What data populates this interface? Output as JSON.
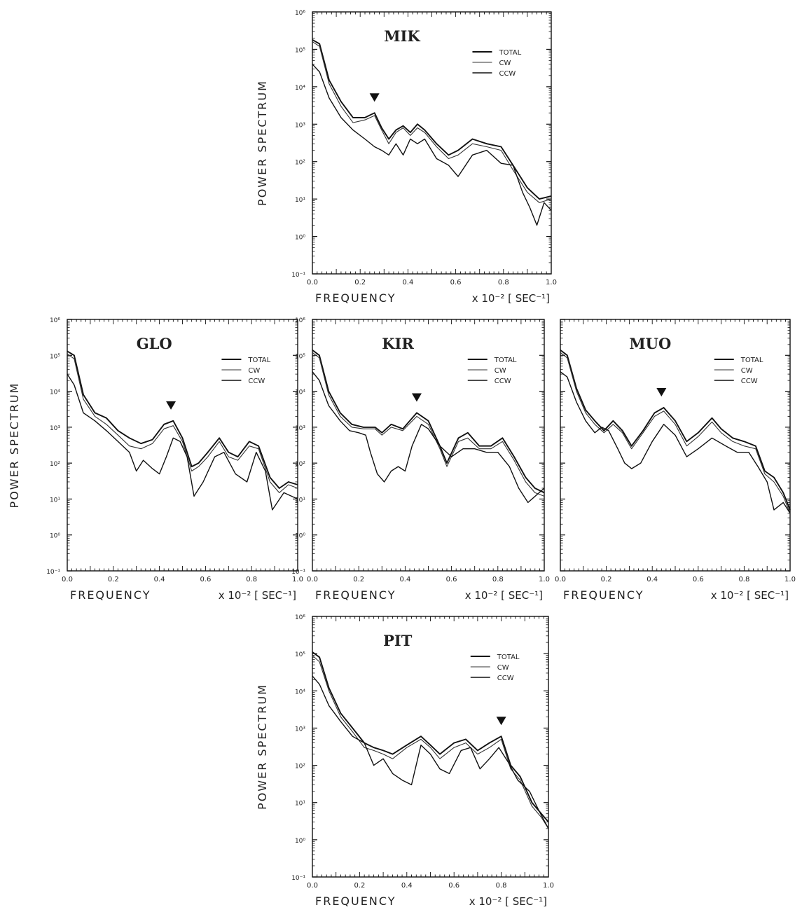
{
  "chart_data": [
    {
      "type": "line",
      "station": "MIK",
      "yscale": "log",
      "xlim": [
        0,
        1.0
      ],
      "ylim": [
        0.1,
        1000000
      ],
      "xlabel": "FREQUENCY",
      "xunit": "x 10⁻² [ SEC⁻¹]",
      "ylabel": "POWER SPECTRUM",
      "x_ticks": [
        "0.0",
        "0.2",
        "0.4",
        "0.6",
        "0.8",
        "1.0"
      ],
      "y_ticks": [
        "10⁻¹",
        "10⁰",
        "10¹",
        "10²",
        "10³",
        "10⁴",
        "10⁵",
        "10⁶"
      ],
      "legend": [
        "TOTAL",
        "CW",
        "CCW"
      ],
      "legend_position": "top-right",
      "peak_marker_x": 0.26,
      "series": [
        {
          "name": "TOTAL",
          "x": [
            0.0,
            0.03,
            0.07,
            0.12,
            0.17,
            0.22,
            0.26,
            0.29,
            0.32,
            0.35,
            0.38,
            0.41,
            0.44,
            0.47,
            0.52,
            0.57,
            0.61,
            0.67,
            0.73,
            0.79,
            0.84,
            0.9,
            0.95,
            1.0
          ],
          "y": [
            180000,
            140000,
            15000,
            4000,
            1500,
            1500,
            2000,
            800,
            400,
            700,
            900,
            600,
            1000,
            700,
            300,
            150,
            200,
            400,
            300,
            250,
            80,
            20,
            10,
            12
          ]
        },
        {
          "name": "CW",
          "x": [
            0.0,
            0.03,
            0.07,
            0.12,
            0.17,
            0.22,
            0.26,
            0.29,
            0.32,
            0.35,
            0.38,
            0.41,
            0.44,
            0.47,
            0.52,
            0.57,
            0.61,
            0.67,
            0.73,
            0.79,
            0.84,
            0.9,
            0.95,
            1.0
          ],
          "y": [
            160000,
            120000,
            12000,
            3000,
            1100,
            1300,
            1700,
            700,
            300,
            600,
            800,
            500,
            800,
            600,
            250,
            120,
            150,
            300,
            250,
            200,
            60,
            15,
            8,
            10
          ]
        },
        {
          "name": "CCW",
          "x": [
            0.0,
            0.03,
            0.07,
            0.12,
            0.17,
            0.22,
            0.26,
            0.29,
            0.32,
            0.35,
            0.38,
            0.41,
            0.44,
            0.47,
            0.52,
            0.57,
            0.61,
            0.67,
            0.73,
            0.79,
            0.84,
            0.88,
            0.91,
            0.94,
            0.97,
            1.0
          ],
          "y": [
            40000,
            25000,
            5000,
            1500,
            700,
            400,
            250,
            200,
            150,
            300,
            150,
            400,
            300,
            400,
            120,
            80,
            40,
            150,
            200,
            90,
            80,
            15,
            6,
            2,
            8,
            5
          ]
        }
      ]
    },
    {
      "type": "line",
      "station": "GLO",
      "yscale": "log",
      "xlim": [
        0,
        1.0
      ],
      "ylim": [
        0.1,
        1000000
      ],
      "xlabel": "FREQUENCY",
      "xunit": "x 10⁻² [ SEC⁻¹]",
      "ylabel": "POWER SPECTRUM",
      "x_ticks": [
        "0.0",
        "0.2",
        "0.4",
        "0.6",
        "0.8",
        "1.0"
      ],
      "y_ticks": [
        "10⁻¹",
        "10⁰",
        "10¹",
        "10²",
        "10³",
        "10⁴",
        "10⁵",
        "10⁶"
      ],
      "legend": [
        "TOTAL",
        "CW",
        "CCW"
      ],
      "legend_position": "top-right",
      "peak_marker_x": 0.45,
      "series": [
        {
          "name": "TOTAL",
          "x": [
            0.0,
            0.03,
            0.07,
            0.12,
            0.17,
            0.22,
            0.27,
            0.32,
            0.37,
            0.42,
            0.46,
            0.5,
            0.54,
            0.57,
            0.61,
            0.66,
            0.7,
            0.74,
            0.79,
            0.83,
            0.88,
            0.92,
            0.96,
            1.0
          ],
          "y": [
            130000,
            100000,
            8000,
            2500,
            1800,
            800,
            500,
            350,
            450,
            1200,
            1500,
            500,
            80,
            100,
            200,
            500,
            200,
            150,
            400,
            300,
            40,
            20,
            30,
            25
          ]
        },
        {
          "name": "CW",
          "x": [
            0.0,
            0.03,
            0.07,
            0.12,
            0.17,
            0.22,
            0.27,
            0.32,
            0.37,
            0.42,
            0.46,
            0.5,
            0.54,
            0.57,
            0.61,
            0.66,
            0.7,
            0.74,
            0.79,
            0.83,
            0.88,
            0.92,
            0.96,
            1.0
          ],
          "y": [
            110000,
            80000,
            6000,
            2000,
            1200,
            600,
            300,
            250,
            350,
            900,
            1100,
            400,
            60,
            80,
            150,
            400,
            150,
            120,
            300,
            250,
            30,
            15,
            25,
            20
          ]
        },
        {
          "name": "CCW",
          "x": [
            0.0,
            0.03,
            0.07,
            0.12,
            0.17,
            0.22,
            0.27,
            0.3,
            0.33,
            0.37,
            0.4,
            0.43,
            0.46,
            0.49,
            0.52,
            0.55,
            0.59,
            0.64,
            0.68,
            0.73,
            0.78,
            0.82,
            0.86,
            0.89,
            0.94,
            1.0
          ],
          "y": [
            30000,
            15000,
            2500,
            1500,
            800,
            400,
            200,
            60,
            120,
            70,
            50,
            150,
            500,
            400,
            150,
            12,
            30,
            150,
            200,
            50,
            30,
            200,
            60,
            5,
            15,
            10
          ]
        }
      ]
    },
    {
      "type": "line",
      "station": "KIR",
      "yscale": "log",
      "xlim": [
        0,
        1.0
      ],
      "ylim": [
        0.1,
        1000000
      ],
      "xlabel": "FREQUENCY",
      "xunit": "x 10⁻² [ SEC⁻¹]",
      "ylabel": "POWER SPECTRUM",
      "x_ticks": [
        "0.0",
        "0.2",
        "0.4",
        "0.6",
        "0.8",
        "1.0"
      ],
      "y_ticks": [
        "10⁻¹",
        "10⁰",
        "10¹",
        "10²",
        "10³",
        "10⁴",
        "10⁵",
        "10⁶"
      ],
      "legend": [
        "TOTAL",
        "CW",
        "CCW"
      ],
      "legend_position": "top-right",
      "peak_marker_x": 0.45,
      "series": [
        {
          "name": "TOTAL",
          "x": [
            0.0,
            0.03,
            0.07,
            0.12,
            0.17,
            0.22,
            0.27,
            0.3,
            0.34,
            0.39,
            0.45,
            0.5,
            0.55,
            0.58,
            0.63,
            0.67,
            0.72,
            0.77,
            0.82,
            0.87,
            0.92,
            0.96,
            1.0
          ],
          "y": [
            140000,
            100000,
            10000,
            2500,
            1200,
            1000,
            1000,
            700,
            1200,
            900,
            2500,
            1500,
            300,
            100,
            500,
            700,
            300,
            300,
            500,
            150,
            40,
            20,
            15
          ]
        },
        {
          "name": "CW",
          "x": [
            0.0,
            0.03,
            0.07,
            0.12,
            0.17,
            0.22,
            0.27,
            0.3,
            0.34,
            0.39,
            0.45,
            0.5,
            0.55,
            0.58,
            0.63,
            0.67,
            0.72,
            0.77,
            0.82,
            0.87,
            0.92,
            0.96,
            1.0
          ],
          "y": [
            120000,
            85000,
            8000,
            2000,
            1000,
            900,
            900,
            600,
            1000,
            800,
            2000,
            1200,
            250,
            80,
            400,
            500,
            250,
            250,
            400,
            120,
            30,
            15,
            12
          ]
        },
        {
          "name": "CCW",
          "x": [
            0.0,
            0.03,
            0.07,
            0.12,
            0.16,
            0.2,
            0.23,
            0.25,
            0.28,
            0.31,
            0.34,
            0.37,
            0.4,
            0.43,
            0.47,
            0.5,
            0.55,
            0.6,
            0.65,
            0.7,
            0.75,
            0.8,
            0.85,
            0.89,
            0.93,
            1.0
          ],
          "y": [
            35000,
            20000,
            4000,
            1500,
            800,
            700,
            600,
            200,
            50,
            30,
            60,
            80,
            60,
            300,
            1200,
            900,
            300,
            150,
            250,
            250,
            200,
            200,
            80,
            20,
            8,
            20
          ]
        }
      ]
    },
    {
      "type": "line",
      "station": "MUO",
      "yscale": "log",
      "xlim": [
        0,
        1.0
      ],
      "ylim": [
        0.1,
        1000000
      ],
      "xlabel": "FREQUENCY",
      "xunit": "x 10⁻² [ SEC⁻¹]",
      "ylabel": "",
      "x_ticks": [
        "0.0",
        "0.2",
        "0.4",
        "0.6",
        "0.8",
        "1.0"
      ],
      "y_ticks": [],
      "legend": [
        "TOTAL",
        "CW",
        "CCW"
      ],
      "legend_position": "top-right",
      "peak_marker_x": 0.44,
      "series": [
        {
          "name": "TOTAL",
          "x": [
            0.0,
            0.03,
            0.07,
            0.11,
            0.15,
            0.19,
            0.23,
            0.27,
            0.31,
            0.36,
            0.41,
            0.45,
            0.5,
            0.55,
            0.6,
            0.66,
            0.7,
            0.75,
            0.8,
            0.85,
            0.89,
            0.93,
            0.97,
            1.0
          ],
          "y": [
            140000,
            100000,
            12000,
            3000,
            1500,
            800,
            1500,
            800,
            300,
            800,
            2500,
            3500,
            1500,
            400,
            700,
            1800,
            900,
            500,
            400,
            300,
            60,
            40,
            15,
            5
          ]
        },
        {
          "name": "CW",
          "x": [
            0.0,
            0.03,
            0.07,
            0.11,
            0.15,
            0.19,
            0.23,
            0.27,
            0.31,
            0.36,
            0.41,
            0.45,
            0.5,
            0.55,
            0.6,
            0.66,
            0.7,
            0.75,
            0.8,
            0.85,
            0.89,
            0.93,
            0.97,
            1.0
          ],
          "y": [
            120000,
            85000,
            10000,
            2500,
            1200,
            700,
            1200,
            700,
            250,
            700,
            2000,
            2800,
            1200,
            300,
            550,
            1400,
            700,
            400,
            300,
            250,
            50,
            30,
            12,
            4
          ]
        },
        {
          "name": "CCW",
          "x": [
            0.0,
            0.03,
            0.07,
            0.11,
            0.15,
            0.18,
            0.21,
            0.25,
            0.28,
            0.31,
            0.35,
            0.4,
            0.45,
            0.5,
            0.55,
            0.6,
            0.66,
            0.72,
            0.77,
            0.82,
            0.86,
            0.9,
            0.93,
            0.97,
            1.0
          ],
          "y": [
            35000,
            25000,
            5000,
            1500,
            700,
            1000,
            800,
            250,
            100,
            70,
            100,
            400,
            1200,
            600,
            150,
            250,
            500,
            300,
            200,
            200,
            80,
            30,
            5,
            8,
            4
          ]
        }
      ]
    },
    {
      "type": "line",
      "station": "PIT",
      "yscale": "log",
      "xlim": [
        0,
        1.0
      ],
      "ylim": [
        0.1,
        1000000
      ],
      "xlabel": "FREQUENCY",
      "xunit": "x 10⁻² [ SEC⁻¹]",
      "ylabel": "POWER SPECTRUM",
      "x_ticks": [
        "0.0",
        "0.2",
        "0.4",
        "0.6",
        "0.8",
        "1.0"
      ],
      "y_ticks": [
        "10⁻¹",
        "10⁰",
        "10¹",
        "10²",
        "10³",
        "10⁴",
        "10⁵",
        "10⁶"
      ],
      "legend": [
        "TOTAL",
        "CW",
        "CCW"
      ],
      "legend_position": "top-right",
      "peak_marker_x": 0.8,
      "series": [
        {
          "name": "TOTAL",
          "x": [
            0.0,
            0.03,
            0.07,
            0.12,
            0.17,
            0.22,
            0.26,
            0.3,
            0.34,
            0.4,
            0.46,
            0.5,
            0.54,
            0.6,
            0.65,
            0.7,
            0.75,
            0.8,
            0.84,
            0.88,
            0.93,
            0.97,
            1.0
          ],
          "y": [
            110000,
            80000,
            12000,
            2500,
            1000,
            400,
            300,
            250,
            200,
            350,
            600,
            350,
            200,
            400,
            500,
            250,
            400,
            600,
            100,
            50,
            10,
            5,
            3
          ]
        },
        {
          "name": "CW",
          "x": [
            0.0,
            0.03,
            0.07,
            0.12,
            0.17,
            0.22,
            0.26,
            0.3,
            0.34,
            0.4,
            0.46,
            0.5,
            0.54,
            0.6,
            0.65,
            0.7,
            0.75,
            0.8,
            0.84,
            0.88,
            0.93,
            0.97,
            1.0
          ],
          "y": [
            90000,
            60000,
            10000,
            2000,
            800,
            300,
            250,
            200,
            150,
            300,
            500,
            300,
            150,
            300,
            400,
            200,
            300,
            500,
            80,
            40,
            8,
            4,
            2
          ]
        },
        {
          "name": "CCW",
          "x": [
            0.0,
            0.03,
            0.07,
            0.12,
            0.17,
            0.22,
            0.26,
            0.3,
            0.34,
            0.38,
            0.42,
            0.46,
            0.5,
            0.54,
            0.58,
            0.63,
            0.67,
            0.71,
            0.75,
            0.79,
            0.83,
            0.87,
            0.92,
            0.96,
            1.0
          ],
          "y": [
            25000,
            15000,
            4000,
            1500,
            600,
            400,
            100,
            150,
            60,
            40,
            30,
            350,
            200,
            80,
            60,
            250,
            300,
            80,
            150,
            300,
            120,
            40,
            20,
            6,
            2
          ]
        }
      ]
    }
  ]
}
